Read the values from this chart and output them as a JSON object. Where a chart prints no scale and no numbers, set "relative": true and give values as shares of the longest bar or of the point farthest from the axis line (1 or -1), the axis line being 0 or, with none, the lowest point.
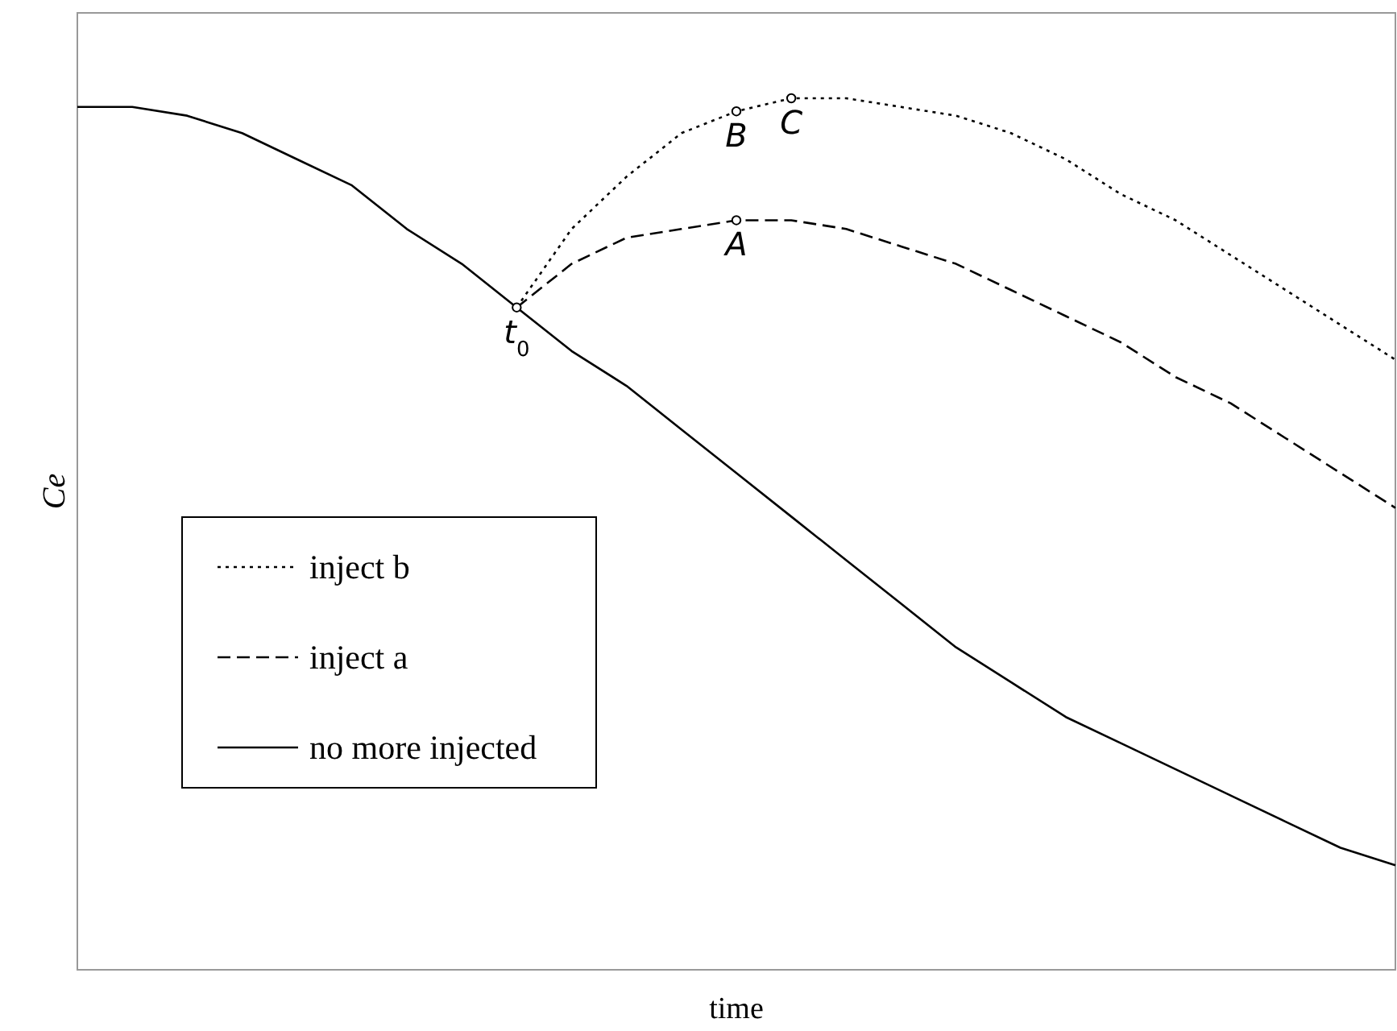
{
  "chart_data": {
    "type": "line",
    "relative": true,
    "xlabel": "time",
    "ylabel": "Ce",
    "legend": "bottom left",
    "marker": "none",
    "categories": [
      null,
      null,
      null,
      null,
      null,
      null,
      null,
      null,
      null,
      null,
      null,
      null,
      null,
      null,
      null,
      null,
      null,
      null,
      null,
      null,
      null,
      null,
      null,
      null,
      null
    ],
    "series": [
      {
        "name": "inject b",
        "color": "#000000",
        "line_style": "dotted",
        "values": [
          null,
          null,
          null,
          null,
          null,
          null,
          null,
          null,
          0.76,
          0.85,
          0.91,
          0.96,
          0.985,
          1.0,
          1.0,
          0.99,
          0.98,
          0.96,
          0.93,
          0.89,
          0.86,
          0.82,
          0.78,
          0.74,
          0.7
        ]
      },
      {
        "name": "inject a",
        "color": "#000000",
        "line_style": "dashed",
        "values": [
          null,
          null,
          null,
          null,
          null,
          null,
          null,
          null,
          0.76,
          0.81,
          0.84,
          0.85,
          0.86,
          0.86,
          0.85,
          0.83,
          0.81,
          0.78,
          0.75,
          0.72,
          0.68,
          0.65,
          0.61,
          0.57,
          0.53
        ]
      },
      {
        "name": "no more injected",
        "color": "#000000",
        "line_style": "solid",
        "values": [
          0.99,
          0.99,
          0.98,
          0.96,
          0.93,
          0.9,
          0.85,
          0.81,
          0.76,
          0.71,
          0.67,
          0.62,
          0.57,
          0.52,
          0.47,
          0.42,
          0.37,
          0.33,
          0.29,
          0.26,
          0.23,
          0.2,
          0.17,
          0.14,
          0.12
        ]
      }
    ],
    "annotations": [
      {
        "text": "A",
        "y": 0.86
      },
      {
        "text": "B",
        "y": 0.985
      },
      {
        "text": "C",
        "y": 1.0
      },
      {
        "text": "t$_{0}$",
        "y": 0.76
      }
    ]
  }
}
